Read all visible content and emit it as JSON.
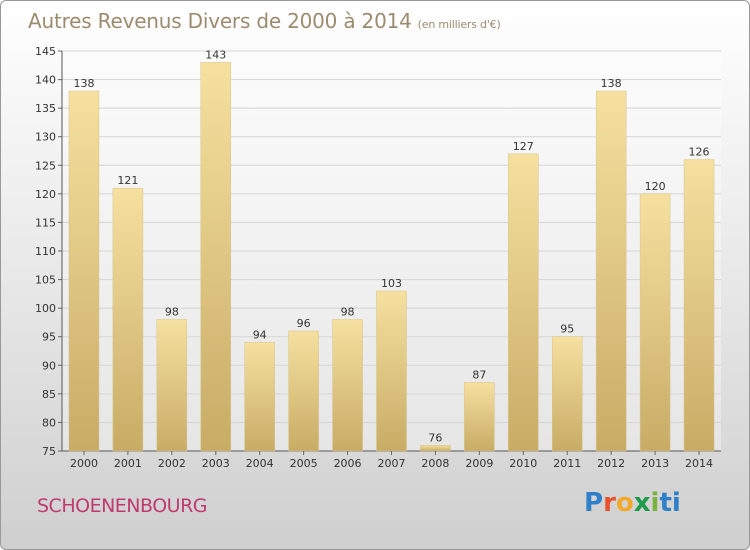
{
  "title": {
    "main": "Autres Revenus Divers de 2000 à 2014",
    "unit": "(en milliers d'€)"
  },
  "commune": "SCHOENENBOURG",
  "logo": [
    "P",
    "r",
    "o",
    "x",
    "i",
    "ti"
  ],
  "colors": {
    "bar_light": "#f6e0a0",
    "bar_dark": "#c8ac66",
    "title": "#9c8b6e",
    "commune": "#c03a6e",
    "grid": "#d5d5d5"
  },
  "chart_data": {
    "type": "bar",
    "title": "Autres Revenus Divers de 2000 à 2014",
    "subtitle": "(en milliers d'€)",
    "xlabel": "",
    "ylabel": "",
    "ylim": [
      75,
      145
    ],
    "yticks": [
      75,
      80,
      85,
      90,
      95,
      100,
      105,
      110,
      115,
      120,
      125,
      130,
      135,
      140,
      145
    ],
    "grid": true,
    "categories": [
      "2000",
      "2001",
      "2002",
      "2003",
      "2004",
      "2005",
      "2006",
      "2007",
      "2008",
      "2009",
      "2010",
      "2011",
      "2012",
      "2013",
      "2014"
    ],
    "values": [
      138,
      121,
      98,
      143,
      94,
      96,
      98,
      103,
      76,
      87,
      127,
      95,
      138,
      120,
      126
    ]
  }
}
